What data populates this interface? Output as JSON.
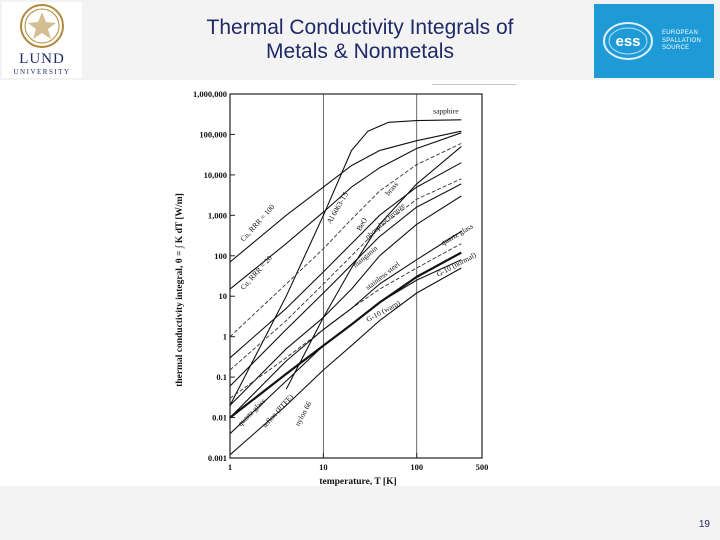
{
  "header": {
    "title_line1": "Thermal Conductivity Integrals of",
    "title_line2": "Metals & Nonmetals",
    "lund_logo": {
      "word": "LUND",
      "sub": "UNIVERSITY"
    },
    "ess_logo": {
      "line1": "EUROPEAN",
      "line2": "SPALLATION",
      "line3": "SOURCE",
      "mark": "ess"
    }
  },
  "footer": {
    "page_number": "19"
  },
  "colors": {
    "title": "#1f2a66",
    "ess_blue": "#1e9ad6",
    "band": "#f3f3f3"
  },
  "chart_data": {
    "type": "line",
    "xlabel": "temperature, T [K]",
    "ylabel": "thermal conductivity integral, θ = ∫ K dT [W/m]",
    "x_scale": "log",
    "y_scale": "log",
    "xlim": [
      1,
      500
    ],
    "ylim": [
      0.001,
      1000000
    ],
    "x_ticks": [
      {
        "value": 1,
        "label": "1"
      },
      {
        "value": 10,
        "label": "10"
      },
      {
        "value": 100,
        "label": "100"
      },
      {
        "value": 500,
        "label": "500"
      }
    ],
    "y_ticks": [
      {
        "value": 0.001,
        "label": "0.001"
      },
      {
        "value": 0.01,
        "label": "0.01"
      },
      {
        "value": 0.1,
        "label": "0.1"
      },
      {
        "value": 1,
        "label": "1"
      },
      {
        "value": 10,
        "label": "10"
      },
      {
        "value": 100,
        "label": "100"
      },
      {
        "value": 1000,
        "label": "1,000"
      },
      {
        "value": 10000,
        "label": "10,000"
      },
      {
        "value": 100000,
        "label": "100,000"
      },
      {
        "value": 1000000,
        "label": "1,000,000"
      }
    ],
    "grid": "vertical lines at T = 10 and T = 100",
    "series": [
      {
        "name": "sapphire",
        "style": "solid",
        "x": [
          1,
          4,
          10,
          20,
          30,
          50,
          100,
          300
        ],
        "y": [
          0.02,
          10,
          1000,
          40000,
          120000,
          200000,
          220000,
          230000
        ]
      },
      {
        "name": "Cu, RRR = 100",
        "style": "solid",
        "x": [
          1,
          4,
          10,
          20,
          40,
          100,
          300
        ],
        "y": [
          70,
          1000,
          5000,
          17000,
          40000,
          70000,
          120000
        ]
      },
      {
        "name": "Cu, RRR = 20",
        "style": "solid",
        "x": [
          1,
          4,
          10,
          20,
          40,
          100,
          300
        ],
        "y": [
          15,
          200,
          1200,
          5000,
          15000,
          45000,
          110000
        ]
      },
      {
        "name": "Al 6063-T5",
        "style": "dashed",
        "x": [
          1,
          4,
          10,
          20,
          40,
          100,
          300
        ],
        "y": [
          1,
          20,
          150,
          800,
          4000,
          18000,
          60000
        ]
      },
      {
        "name": "BeO",
        "style": "solid",
        "x": [
          4,
          10,
          20,
          40,
          100,
          300
        ],
        "y": [
          0.05,
          3,
          50,
          600,
          6000,
          50000
        ]
      },
      {
        "name": "brass",
        "style": "solid",
        "x": [
          1,
          4,
          10,
          20,
          40,
          100,
          300
        ],
        "y": [
          0.3,
          5,
          40,
          200,
          1000,
          5000,
          20000
        ]
      },
      {
        "name": "phosphor bronze",
        "style": "dashed",
        "x": [
          1,
          4,
          10,
          20,
          40,
          100,
          300
        ],
        "y": [
          0.15,
          2.5,
          20,
          100,
          500,
          2500,
          8000
        ]
      },
      {
        "name": "manganin",
        "style": "solid",
        "x": [
          1,
          4,
          10,
          20,
          40,
          100,
          300
        ],
        "y": [
          0.06,
          1.5,
          12,
          60,
          300,
          1600,
          6000
        ]
      },
      {
        "name": "stainless steel",
        "style": "solid",
        "x": [
          1,
          4,
          10,
          20,
          40,
          100,
          300
        ],
        "y": [
          0.02,
          0.5,
          3,
          15,
          100,
          600,
          3000
        ]
      },
      {
        "name": "G-10 (warp)",
        "style": "dashed",
        "x": [
          1,
          4,
          10,
          20,
          40,
          100,
          300
        ],
        "y": [
          0.03,
          0.3,
          1.5,
          5,
          15,
          50,
          200
        ]
      },
      {
        "name": "quartz glass",
        "style": "solid",
        "x": [
          1,
          4,
          10,
          20,
          40,
          100,
          300
        ],
        "y": [
          0.01,
          0.25,
          1.5,
          5,
          20,
          80,
          400
        ]
      },
      {
        "name": "G-10 (normal)",
        "style": "bold",
        "x": [
          1,
          4,
          10,
          20,
          40,
          100,
          300
        ],
        "y": [
          0.01,
          0.12,
          0.6,
          2,
          7,
          30,
          120
        ]
      },
      {
        "name": "teflon (PTFE)",
        "style": "solid",
        "x": [
          1,
          4,
          10,
          20,
          40,
          100,
          300
        ],
        "y": [
          0.004,
          0.08,
          0.6,
          2,
          7,
          25,
          80
        ]
      },
      {
        "name": "nylon 66",
        "style": "solid",
        "x": [
          1,
          4,
          10,
          20,
          40,
          100,
          300
        ],
        "y": [
          0.0012,
          0.02,
          0.15,
          0.6,
          2.5,
          12,
          50
        ]
      }
    ],
    "annotations": [
      {
        "text": "sapphire",
        "series": "sapphire",
        "x": 150,
        "y": 330000,
        "angle": 0
      },
      {
        "text": "Cu, RRR = 100",
        "series": "Cu, RRR = 100",
        "x": 1.4,
        "y": 220,
        "angle": -48
      },
      {
        "text": "Cu, RRR = 20",
        "series": "Cu, RRR = 20",
        "x": 1.4,
        "y": 14,
        "angle": -48
      },
      {
        "text": "Al 6063-T5",
        "series": "Al 6063-T5",
        "x": 12,
        "y": 600,
        "angle": -60
      },
      {
        "text": "BeO",
        "series": "BeO",
        "x": 25,
        "y": 400,
        "angle": -60
      },
      {
        "text": "brass",
        "series": "brass",
        "x": 50,
        "y": 3000,
        "angle": -50
      },
      {
        "text": "phosphor bronze",
        "series": "phosphor bronze",
        "x": 30,
        "y": 250,
        "angle": -42
      },
      {
        "text": "manganin",
        "series": "manganin",
        "x": 22,
        "y": 50,
        "angle": -40
      },
      {
        "text": "stainless steel",
        "series": "stainless steel",
        "x": 30,
        "y": 14,
        "angle": -38
      },
      {
        "text": "G-10 (warp)",
        "series": "G-10 (warp)",
        "x": 30,
        "y": 2.3,
        "angle": -28
      },
      {
        "text": "quartz glass",
        "series": "quartz glass",
        "x": 190,
        "y": 180,
        "angle": -30
      },
      {
        "text": "G-10 (normal)",
        "series": "G-10 (normal)",
        "x": 170,
        "y": 30,
        "angle": -28
      },
      {
        "text": "quartz glass",
        "series": "quartz glass",
        "x": 1.3,
        "y": 0.006,
        "angle": -45
      },
      {
        "text": "teflon (PTFE)",
        "series": "teflon (PTFE)",
        "x": 2.4,
        "y": 0.0055,
        "angle": -48
      },
      {
        "text": "nylon 66",
        "series": "nylon 66",
        "x": 5.5,
        "y": 0.006,
        "angle": -62
      }
    ]
  }
}
